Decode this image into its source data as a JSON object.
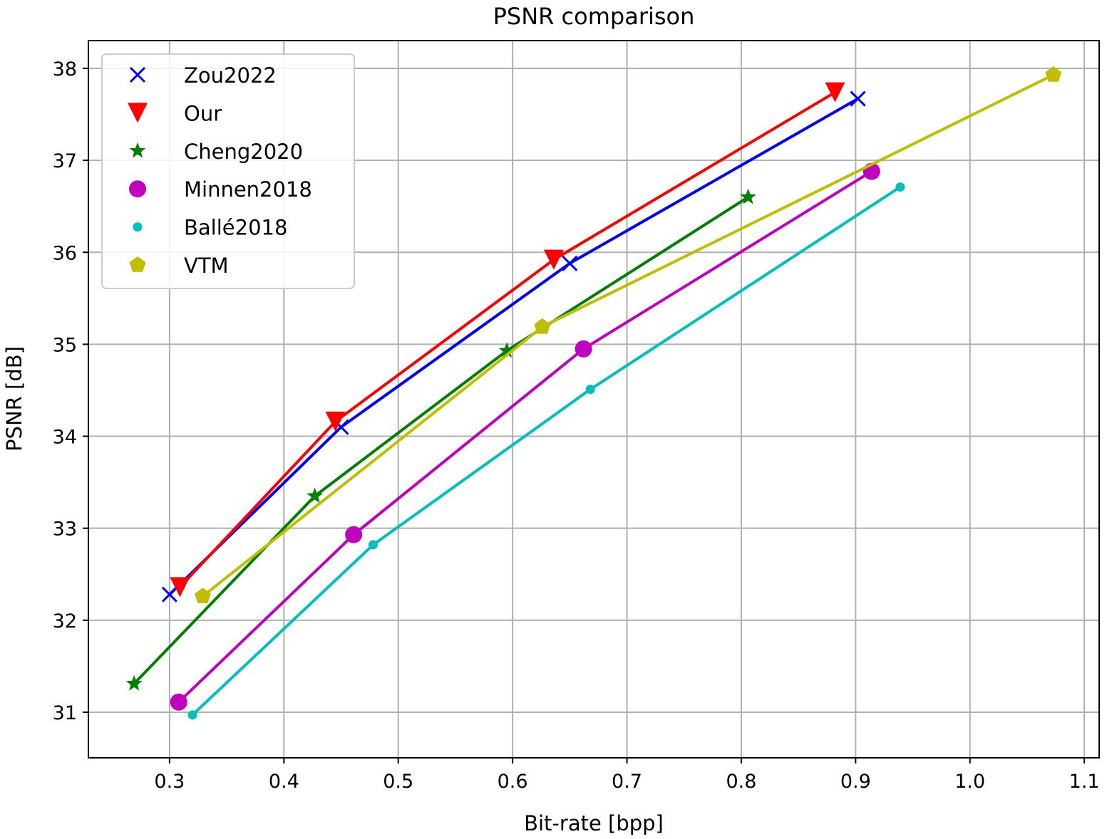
{
  "chart_data": {
    "type": "line",
    "title": "PSNR comparison",
    "xlabel": "Bit-rate [bpp]",
    "ylabel": "PSNR [dB]",
    "xlim": [
      0.229,
      1.113
    ],
    "ylim": [
      30.504,
      38.302
    ],
    "xticks": [
      0.3,
      0.4,
      0.5,
      0.6,
      0.7,
      0.8,
      0.9,
      1.0,
      1.1
    ],
    "xtick_labels": [
      "0.3",
      "0.4",
      "0.5",
      "0.6",
      "0.7",
      "0.8",
      "0.9",
      "1.0",
      "1.1"
    ],
    "yticks": [
      31,
      32,
      33,
      34,
      35,
      36,
      37,
      38
    ],
    "ytick_labels": [
      "31",
      "32",
      "33",
      "34",
      "35",
      "36",
      "37",
      "38"
    ],
    "grid": true,
    "legend_placement": "top-left",
    "series": [
      {
        "name": "Zou2022",
        "color": "#0000ff",
        "marker": "x",
        "x": [
          0.3,
          0.45,
          0.65,
          0.902
        ],
        "y": [
          32.28,
          34.1,
          35.88,
          37.67
        ]
      },
      {
        "name": "Our",
        "color": "#ff0000",
        "marker": "triangle-down",
        "x": [
          0.309,
          0.445,
          0.636,
          0.882
        ],
        "y": [
          32.36,
          34.16,
          35.92,
          37.74
        ]
      },
      {
        "name": "Cheng2020",
        "color": "#008000",
        "marker": "star",
        "x": [
          0.269,
          0.427,
          0.595,
          0.806
        ],
        "y": [
          31.31,
          33.35,
          34.93,
          36.6
        ]
      },
      {
        "name": "Minnen2018",
        "color": "#bf00bf",
        "marker": "circle",
        "x": [
          0.308,
          0.461,
          0.662,
          0.914
        ],
        "y": [
          31.11,
          32.93,
          34.95,
          36.88
        ]
      },
      {
        "name": "Ballé2018",
        "color": "#00bfbf",
        "marker": "point",
        "x": [
          0.32,
          0.478,
          0.668,
          0.939
        ],
        "y": [
          30.97,
          32.82,
          34.51,
          36.71
        ]
      },
      {
        "name": "VTM",
        "color": "#bfbf00",
        "marker": "pentagon",
        "x": [
          0.329,
          0.626,
          1.073
        ],
        "y": [
          32.26,
          35.19,
          37.93
        ]
      }
    ]
  }
}
